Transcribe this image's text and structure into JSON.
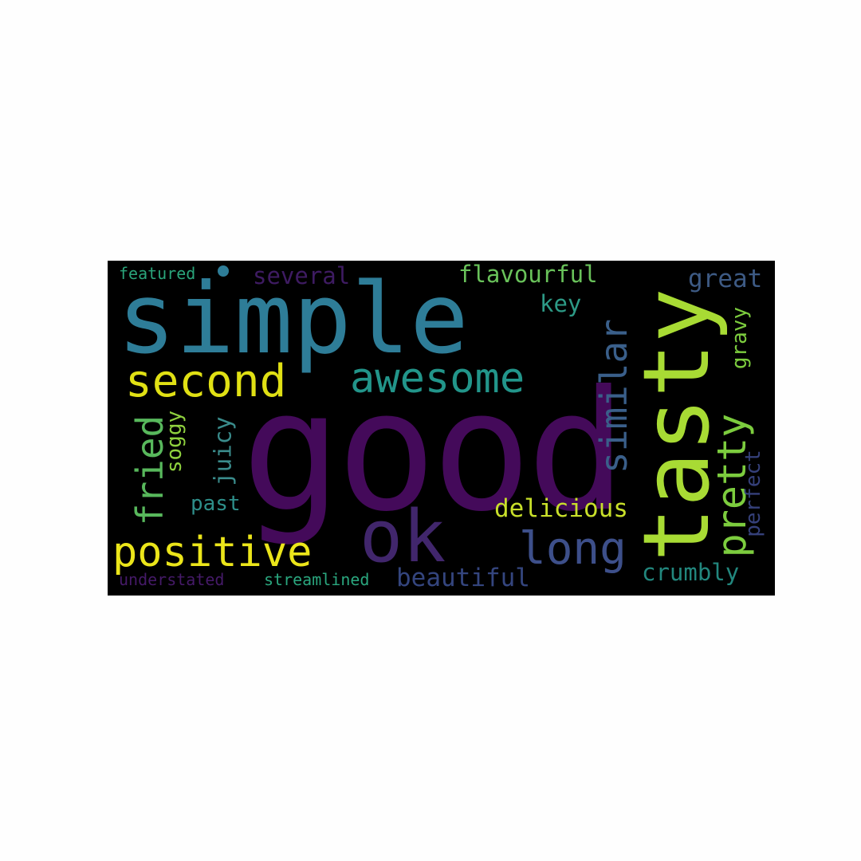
{
  "words": [
    {
      "text": "simple",
      "color": "#2e7d98"
    },
    {
      "text": "good",
      "color": "#440a5a"
    },
    {
      "text": "tasty",
      "color": "#a8db34"
    },
    {
      "text": "second",
      "color": "#e0e014"
    },
    {
      "text": "awesome",
      "color": "#22958a"
    },
    {
      "text": "ok",
      "color": "#41266c"
    },
    {
      "text": "positive",
      "color": "#ebe51a"
    },
    {
      "text": "long",
      "color": "#3d4f8a"
    },
    {
      "text": "pretty",
      "color": "#7ccc3e"
    },
    {
      "text": "similar",
      "color": "#3a5f8a"
    },
    {
      "text": "fried",
      "color": "#58b85c"
    },
    {
      "text": "delicious",
      "color": "#c8df2a"
    },
    {
      "text": "beautiful",
      "color": "#34457e"
    },
    {
      "text": "crumbly",
      "color": "#22877e"
    },
    {
      "text": "flavourful",
      "color": "#69c25a"
    },
    {
      "text": "several",
      "color": "#3e1b62"
    },
    {
      "text": "featured",
      "color": "#2aa47a"
    },
    {
      "text": "key",
      "color": "#2d9a86"
    },
    {
      "text": "great",
      "color": "#3d5a84"
    },
    {
      "text": "gravy",
      "color": "#7ccc3e"
    },
    {
      "text": "perfect",
      "color": "#35407a"
    },
    {
      "text": "juicy",
      "color": "#3a8c8c"
    },
    {
      "text": "soggy",
      "color": "#8fd13e"
    },
    {
      "text": "past",
      "color": "#2e8f8a"
    },
    {
      "text": "understated",
      "color": "#451a68"
    },
    {
      "text": "streamlined",
      "color": "#2aa67e"
    }
  ],
  "dot_color": "#2e7d98"
}
